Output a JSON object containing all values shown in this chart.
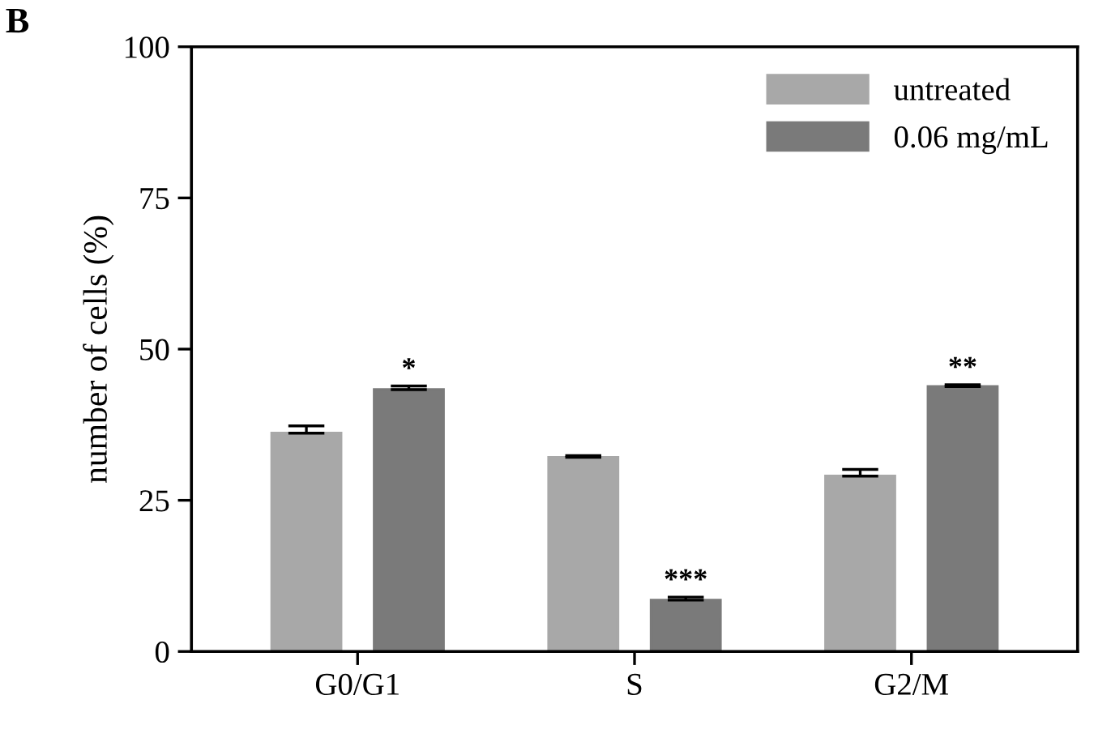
{
  "chart_data": {
    "type": "bar",
    "ylabel": "number of cells (%)",
    "categories": [
      "G0/G1",
      "S",
      "G2/M"
    ],
    "series": [
      {
        "name": "untreated",
        "color": "#a8a8a8",
        "values": [
          36.1,
          32.1,
          29.0
        ],
        "errors": [
          1.2,
          0.3,
          1.1
        ]
      },
      {
        "name": "0.06 mg/mL",
        "color": "#7a7a7a",
        "values": [
          43.3,
          8.5,
          43.8
        ],
        "errors": [
          0.6,
          0.5,
          0.3
        ]
      }
    ],
    "ylim": [
      0,
      100
    ],
    "yticks": [
      0,
      25,
      50,
      75,
      100
    ],
    "grid": false,
    "legend": "top right",
    "annotations": [
      "B",
      "*",
      "***",
      "**"
    ]
  }
}
